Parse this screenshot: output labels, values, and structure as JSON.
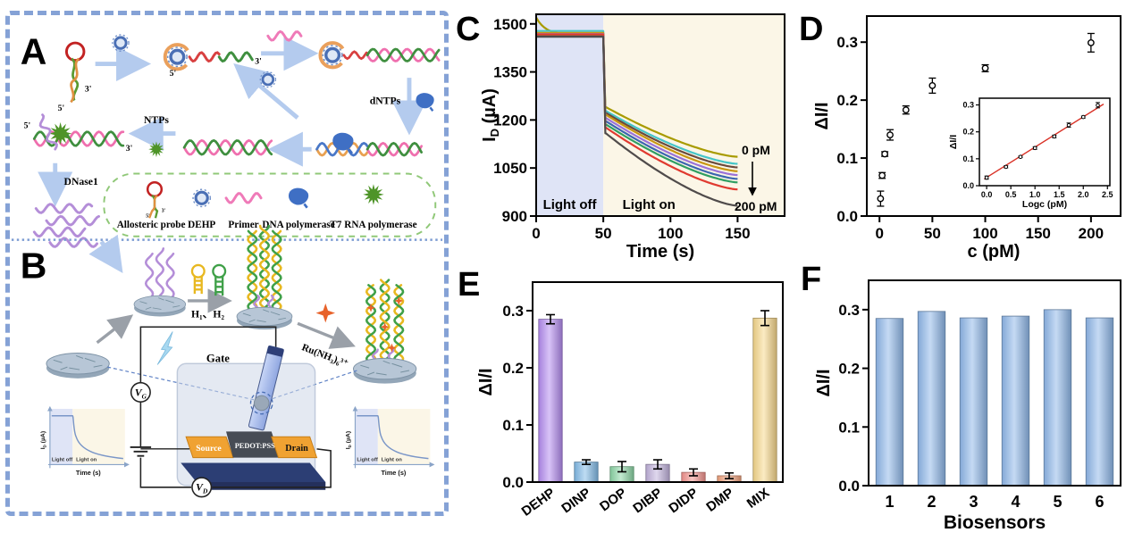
{
  "panels": {
    "a": "A",
    "b": "B",
    "c": "C",
    "d": "D",
    "e": "E",
    "f": "F"
  },
  "colors": {
    "outer_border": "#85a2d6",
    "separator": "#7b9bd2",
    "legend_border": "#90c878",
    "light_off_region": "#dfe4f6",
    "light_on_region": "#fbf6e7",
    "arrow_blue": "#b4cbee",
    "arrow_gray": "#9aa0a8",
    "rna_purple": "#b48ed8",
    "hairpin1_yellow": "#e8b820",
    "hairpin2_green": "#3fa048",
    "ru_star_orange": "#e8622a",
    "electrode_gray": "#b7c6d6",
    "fit_line_red": "#d93025"
  },
  "panel_a": {
    "label": "A",
    "probe_3p": "3'",
    "probe_5p": "5'",
    "dehp_5p": "5'",
    "dehp_3p": "3'",
    "tpl_5p": "5'",
    "tpl_3p": "3'",
    "ntps": "NTPs",
    "dntps": "dNTPs",
    "dnase": "DNase1",
    "legend": {
      "allosteric": {
        "icon": "hairpin-probe-icon",
        "label": "Allosteric probe"
      },
      "dehp": {
        "icon": "dehp-ring-icon",
        "label": "DEHP"
      },
      "primer": {
        "icon": "primer-wave-icon",
        "label": "Primer"
      },
      "dnapol": {
        "icon": "dna-polymerase-icon",
        "label": "DNA polymerase"
      },
      "t7": {
        "icon": "t7-polymerase-icon",
        "label": "T7 RNA polymerase"
      }
    }
  },
  "panel_b": {
    "label": "B",
    "h1h2": "H₁、H₂",
    "ru": "Ru(NH₃)₆³⁺",
    "gate": "Gate",
    "source": "Source",
    "pedot": "PEDOT:PSS",
    "drain": "Drain",
    "v": "V",
    "g_sub": "G",
    "d_sub": "D",
    "inset": {
      "y1": "I",
      "y2": "D",
      "y3": " (µA)",
      "light_off": "Light off",
      "light_on": "Light on",
      "time": "Time (s)"
    }
  },
  "chart_data": [
    {
      "id": "C",
      "type": "line",
      "xlabel": "Time (s)",
      "ylabel_parts": [
        "I",
        "D",
        " (µA)"
      ],
      "xlim": [
        0,
        185
      ],
      "ylim": [
        900,
        1530
      ],
      "xticks": [
        0,
        50,
        100,
        150
      ],
      "yticks": [
        900,
        1050,
        1200,
        1350,
        1500
      ],
      "grid": false,
      "regions": [
        {
          "label": "Light off",
          "x0": 0,
          "x1": 50,
          "color": "#dfe4f6"
        },
        {
          "label": "Light on",
          "x0": 50,
          "x1": 185,
          "color": "#fbf6e7"
        }
      ],
      "light_switch_time": 50,
      "annotation": {
        "top": "0 pM",
        "bottom": "200 pM"
      },
      "series": [
        {
          "end_label": "0 pM",
          "color": "#a89b00",
          "start": 1520,
          "baseline": 1466,
          "knee": 1240,
          "final": 1085
        },
        {
          "color": "#45c5c8",
          "start": 1478,
          "baseline": 1478,
          "knee": 1228,
          "final": 1063
        },
        {
          "color": "#6b4a3c",
          "start": 1470,
          "baseline": 1470,
          "knee": 1222,
          "final": 1052
        },
        {
          "color": "#c89612",
          "start": 1472,
          "baseline": 1472,
          "knee": 1216,
          "final": 1040
        },
        {
          "color": "#9b72d8",
          "start": 1468,
          "baseline": 1468,
          "knee": 1206,
          "final": 1028
        },
        {
          "color": "#3b66b0",
          "start": 1465,
          "baseline": 1465,
          "knee": 1196,
          "final": 1016
        },
        {
          "color": "#2f9e62",
          "start": 1462,
          "baseline": 1462,
          "knee": 1186,
          "final": 1005
        },
        {
          "color": "#e03a30",
          "start": 1467,
          "baseline": 1467,
          "knee": 1176,
          "final": 983
        },
        {
          "end_label": "200 pM",
          "color": "#4f4b4b",
          "start": 1460,
          "baseline": 1460,
          "knee": 1158,
          "final": 932
        }
      ]
    },
    {
      "id": "D",
      "type": "scatter",
      "xlabel": "c (pM)",
      "ylabel": "ΔI/I",
      "xlim": [
        -12,
        228
      ],
      "ylim": [
        0,
        0.345
      ],
      "xticks": [
        0,
        50,
        100,
        150,
        200
      ],
      "yticks": [
        0.0,
        0.1,
        0.2,
        0.3
      ],
      "x": [
        1,
        2.5,
        5,
        10,
        25,
        50,
        100,
        200
      ],
      "y": [
        0.03,
        0.07,
        0.107,
        0.14,
        0.183,
        0.225,
        0.255,
        0.299
      ],
      "yerr": [
        0.013,
        0.005,
        0.004,
        0.009,
        0.007,
        0.013,
        0.006,
        0.016
      ],
      "inset": {
        "type": "scatter+fit",
        "xlabel": "Logc (pM)",
        "ylabel": "ΔI/I",
        "xlim": [
          -0.15,
          2.55
        ],
        "ylim": [
          0,
          0.325
        ],
        "xticks": [
          0.0,
          0.5,
          1.0,
          1.5,
          2.0,
          2.5
        ],
        "yticks": [
          0.0,
          0.1,
          0.2,
          0.3
        ],
        "x": [
          0,
          0.4,
          0.7,
          1.0,
          1.4,
          1.7,
          2.0,
          2.3
        ],
        "y": [
          0.03,
          0.07,
          0.107,
          0.14,
          0.183,
          0.225,
          0.255,
          0.299
        ],
        "yerr": [
          0.006,
          0.004,
          0.003,
          0.005,
          0.005,
          0.008,
          0.004,
          0.01
        ],
        "fit": {
          "x": [
            -0.05,
            2.42
          ],
          "y": [
            0.025,
            0.303
          ],
          "color": "#d93025"
        }
      }
    },
    {
      "id": "E",
      "type": "bar",
      "xlabel": "",
      "ylabel": "ΔI/I",
      "ylim": [
        0,
        0.35
      ],
      "yticks": [
        0.0,
        0.1,
        0.2,
        0.3
      ],
      "categories": [
        "DEHP",
        "DINP",
        "DOP",
        "DIBP",
        "DIDP",
        "DMP",
        "MIX"
      ],
      "values": [
        0.285,
        0.035,
        0.027,
        0.031,
        0.017,
        0.011,
        0.287
      ],
      "errors": [
        0.008,
        0.004,
        0.009,
        0.008,
        0.006,
        0.005,
        0.013
      ],
      "bar_colors": [
        "#b48cf0",
        "#82bbe8",
        "#8cd6a6",
        "#c2b2dc",
        "#f4938e",
        "#f2a37e",
        "#f7d88c"
      ],
      "rotated_labels": true
    },
    {
      "id": "F",
      "type": "bar",
      "xlabel": "Biosensors",
      "ylabel": "ΔI/I",
      "ylim": [
        0,
        0.35
      ],
      "yticks": [
        0.0,
        0.1,
        0.2,
        0.3
      ],
      "categories": [
        "1",
        "2",
        "3",
        "4",
        "5",
        "6"
      ],
      "values": [
        0.285,
        0.297,
        0.286,
        0.289,
        0.3,
        0.286
      ],
      "errors": [
        0,
        0,
        0,
        0,
        0,
        0
      ],
      "bar_colors": [
        "#8fb8ea",
        "#8fb8ea",
        "#8fb8ea",
        "#8fb8ea",
        "#8fb8ea",
        "#8fb8ea"
      ],
      "rotated_labels": false
    }
  ]
}
